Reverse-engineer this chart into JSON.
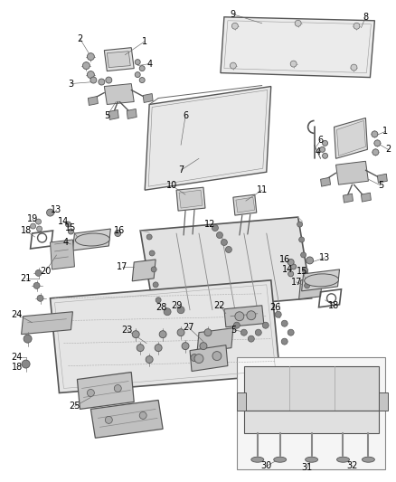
{
  "background_color": "#ffffff",
  "fig_width": 4.39,
  "fig_height": 5.33,
  "dpi": 100,
  "line_color": "#444444",
  "label_color": "#000000",
  "label_fontsize": 7.0,
  "leader_lw": 0.5,
  "part_lw": 0.8,
  "part_color": "#cccccc",
  "part_edge": "#444444"
}
